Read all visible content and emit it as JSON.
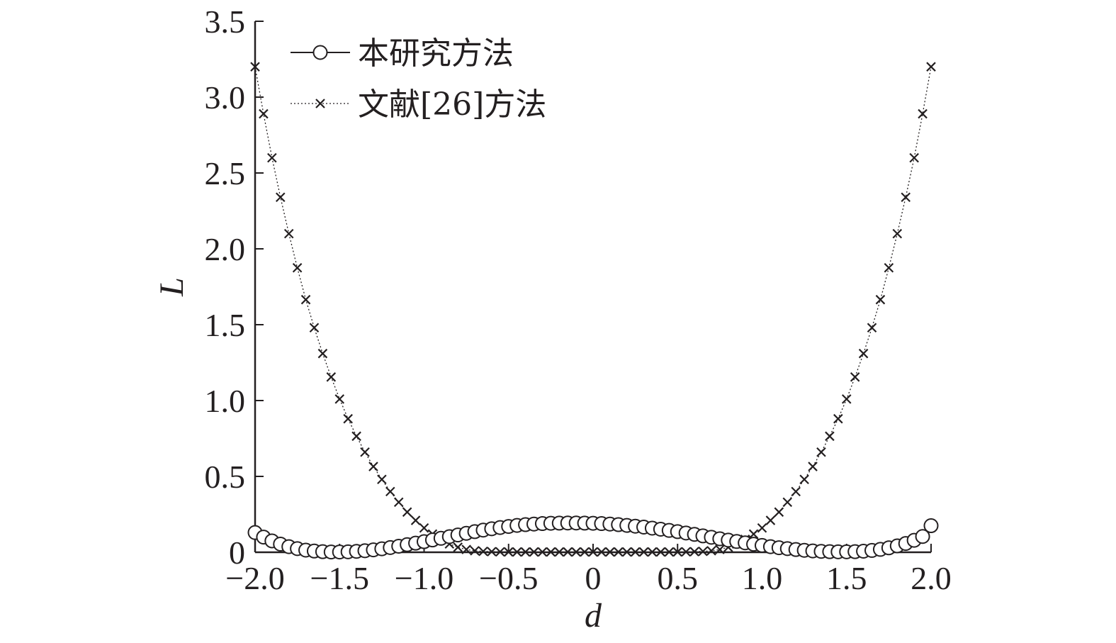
{
  "chart_data": {
    "type": "line",
    "xlabel": "d",
    "ylabel": "L",
    "xlim": [
      -2.0,
      2.0
    ],
    "ylim": [
      0,
      3.5
    ],
    "x_ticks": [
      "−2.0",
      "−1.5",
      "−1.0",
      "−0.5",
      "0",
      "0.5",
      "1.0",
      "1.5",
      "2.0"
    ],
    "y_ticks": [
      "0",
      "0.5",
      "1.0",
      "1.5",
      "2.0",
      "2.5",
      "3.0",
      "3.5"
    ],
    "grid": false,
    "legend_position": "top-left",
    "x": [
      -2.0,
      -1.95,
      -1.9,
      -1.85,
      -1.8,
      -1.75,
      -1.7,
      -1.65,
      -1.6,
      -1.55,
      -1.5,
      -1.45,
      -1.4,
      -1.35,
      -1.3,
      -1.25,
      -1.2,
      -1.15,
      -1.1,
      -1.05,
      -1.0,
      -0.95,
      -0.9,
      -0.85,
      -0.8,
      -0.75,
      -0.7,
      -0.65,
      -0.6,
      -0.55,
      -0.5,
      -0.45,
      -0.4,
      -0.35,
      -0.3,
      -0.25,
      -0.2,
      -0.15,
      -0.1,
      -0.05,
      0.0,
      0.05,
      0.1,
      0.15,
      0.2,
      0.25,
      0.3,
      0.35,
      0.4,
      0.45,
      0.5,
      0.55,
      0.6,
      0.65,
      0.7,
      0.75,
      0.8,
      0.85,
      0.9,
      0.95,
      1.0,
      1.05,
      1.1,
      1.15,
      1.2,
      1.25,
      1.3,
      1.35,
      1.4,
      1.45,
      1.5,
      1.55,
      1.6,
      1.65,
      1.7,
      1.75,
      1.8,
      1.85,
      1.9,
      1.95,
      2.0
    ],
    "series": [
      {
        "name": "本研究方法",
        "marker": "circle",
        "line_style": "solid",
        "values": [
          0.13,
          0.1,
          0.075,
          0.054,
          0.037,
          0.024,
          0.014,
          0.008,
          0.004,
          0.002,
          0.002,
          0.003,
          0.006,
          0.01,
          0.016,
          0.023,
          0.031,
          0.04,
          0.05,
          0.06,
          0.07,
          0.081,
          0.092,
          0.103,
          0.114,
          0.125,
          0.136,
          0.146,
          0.155,
          0.163,
          0.17,
          0.177,
          0.182,
          0.186,
          0.189,
          0.191,
          0.192,
          0.193,
          0.193,
          0.192,
          0.191,
          0.189,
          0.186,
          0.182,
          0.177,
          0.172,
          0.166,
          0.159,
          0.152,
          0.144,
          0.136,
          0.127,
          0.118,
          0.108,
          0.099,
          0.089,
          0.08,
          0.071,
          0.062,
          0.053,
          0.045,
          0.037,
          0.03,
          0.024,
          0.018,
          0.013,
          0.009,
          0.006,
          0.004,
          0.003,
          0.003,
          0.004,
          0.007,
          0.012,
          0.019,
          0.029,
          0.042,
          0.058,
          0.079,
          0.104,
          0.175
        ]
      },
      {
        "name": "文献[26]方法",
        "marker": "x",
        "line_style": "dotted",
        "values": [
          3.2,
          2.89,
          2.6,
          2.34,
          2.1,
          1.875,
          1.665,
          1.48,
          1.31,
          1.155,
          1.01,
          0.88,
          0.765,
          0.66,
          0.565,
          0.48,
          0.4,
          0.33,
          0.265,
          0.21,
          0.16,
          0.12,
          0.085,
          0.055,
          0.033,
          0.018,
          0.01,
          0.006,
          0.004,
          0.003,
          0.002,
          0.002,
          0.002,
          0.002,
          0.002,
          0.002,
          0.002,
          0.002,
          0.002,
          0.002,
          0.002,
          0.002,
          0.002,
          0.002,
          0.002,
          0.002,
          0.002,
          0.002,
          0.002,
          0.002,
          0.002,
          0.003,
          0.004,
          0.006,
          0.01,
          0.018,
          0.033,
          0.055,
          0.085,
          0.12,
          0.16,
          0.21,
          0.265,
          0.33,
          0.4,
          0.48,
          0.565,
          0.66,
          0.765,
          0.88,
          1.01,
          1.155,
          1.31,
          1.48,
          1.665,
          1.875,
          2.1,
          2.34,
          2.6,
          2.89,
          3.2
        ]
      }
    ]
  }
}
